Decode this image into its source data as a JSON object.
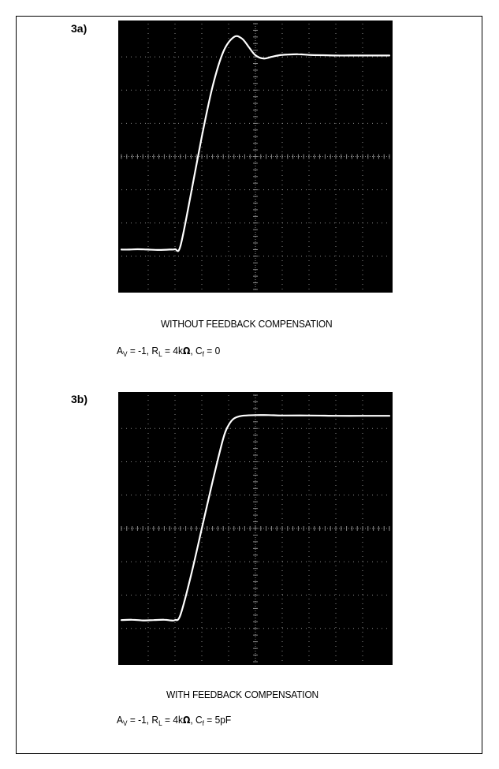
{
  "panels": [
    {
      "label": "3a)",
      "caption": "WITHOUT FEEDBACK COMPENSATION",
      "conditions": {
        "av_sym": "A",
        "av_sub": "V",
        "av_val": " = -1, ",
        "rl_sym": "R",
        "rl_sub": "L",
        "rl_val": " = 4k",
        "ohm": "Ω",
        "cf_sep": ", ",
        "cf_sym": "C",
        "cf_sub": "f",
        "cf_val": " = 0"
      }
    },
    {
      "label": "3b)",
      "caption": "WITH FEEDBACK COMPENSATION",
      "conditions": {
        "av_sym": "A",
        "av_sub": "V",
        "av_val": " = -1, ",
        "rl_sym": "R",
        "rl_sub": "L",
        "rl_val": " = 4k",
        "ohm": "Ω",
        "cf_sep": ", ",
        "cf_sym": "C",
        "cf_sub": "f",
        "cf_val": " = 5pF"
      }
    }
  ],
  "chart_data": [
    {
      "type": "line",
      "title": "WITHOUT FEEDBACK COMPENSATION",
      "xlabel": "",
      "ylabel": "",
      "xlim": [
        0,
        10
      ],
      "ylim": [
        0,
        8
      ],
      "grid": true,
      "colors": {
        "background": "#000000",
        "trace": "#ffffff",
        "grid": "#8a8a8a"
      },
      "series": [
        {
          "x": [
            0,
            0.3,
            0.6,
            1.0,
            1.4,
            1.8,
            2.0,
            2.2,
            2.6,
            3.0,
            3.4,
            3.8,
            4.2,
            4.5,
            4.75,
            5.0,
            5.3,
            5.6,
            5.9,
            6.2,
            6.6,
            7.0,
            7.5,
            8.0,
            8.5,
            9.0,
            9.5,
            10
          ],
          "y": [
            1.2,
            1.2,
            1.21,
            1.2,
            1.19,
            1.2,
            1.21,
            1.3,
            2.9,
            4.6,
            6.1,
            7.15,
            7.6,
            7.55,
            7.3,
            7.05,
            6.95,
            7.0,
            7.05,
            7.07,
            7.08,
            7.06,
            7.05,
            7.04,
            7.04,
            7.04,
            7.04,
            7.04
          ]
        }
      ]
    },
    {
      "type": "line",
      "title": "WITH FEEDBACK COMPENSATION",
      "xlabel": "",
      "ylabel": "",
      "xlim": [
        0,
        10
      ],
      "ylim": [
        0,
        8
      ],
      "grid": true,
      "colors": {
        "background": "#000000",
        "trace": "#ffffff",
        "grid": "#8a8a8a"
      },
      "series": [
        {
          "x": [
            0,
            0.4,
            0.8,
            1.2,
            1.6,
            1.85,
            2.0,
            2.2,
            2.6,
            3.0,
            3.4,
            3.8,
            4.0,
            4.2,
            4.5,
            5.0,
            5.5,
            6.0,
            7.0,
            8.0,
            9.0,
            10
          ],
          "y": [
            1.25,
            1.26,
            1.24,
            1.25,
            1.26,
            1.24,
            1.25,
            1.4,
            2.6,
            4.0,
            5.4,
            6.7,
            7.1,
            7.3,
            7.38,
            7.4,
            7.4,
            7.39,
            7.39,
            7.38,
            7.38,
            7.38
          ]
        }
      ]
    }
  ]
}
